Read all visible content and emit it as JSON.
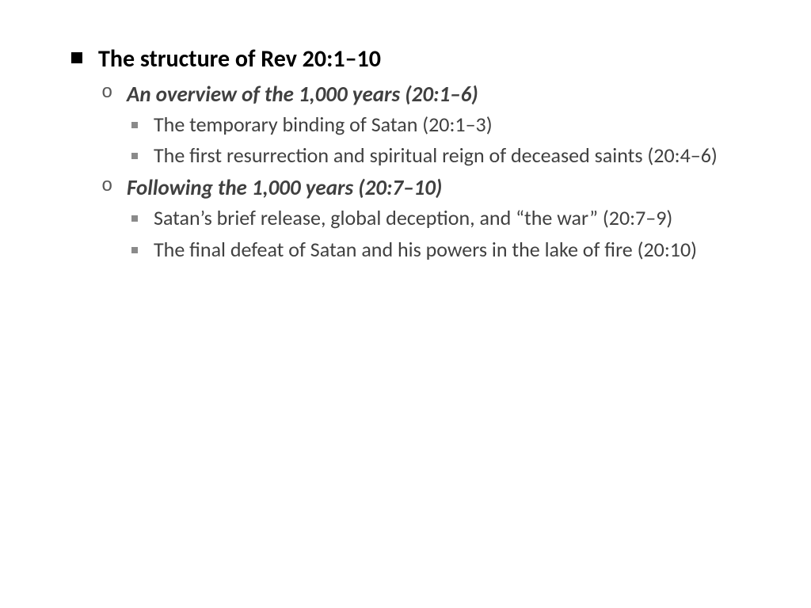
{
  "colors": {
    "background": "#ffffff",
    "heading": "#000000",
    "body": "#404040",
    "bullet_l1": "#000000",
    "bullet_l2": "#595959",
    "bullet_l3": "#8a8a8a"
  },
  "typography": {
    "family": "Calibri",
    "l1_size_pt": 30,
    "l2_size_pt": 27,
    "l3_size_pt": 26,
    "l1_weight": 700,
    "l2_weight": 700,
    "l2_style": "italic",
    "l3_weight": 400
  },
  "outline": {
    "title": "The structure of Rev 20:1–10",
    "sections": [
      {
        "heading": "An overview of the 1,000 years (20:1–6)",
        "points": [
          "The temporary binding of Satan (20:1–3)",
          "The first resurrection and spiritual reign of deceased saints (20:4–6)"
        ]
      },
      {
        "heading": "Following the 1,000 years (20:7–10)",
        "points": [
          "Satan’s brief release, global deception, and “the war” (20:7–9)",
          "The final defeat of Satan and his powers in the lake of fire (20:10)"
        ]
      }
    ]
  }
}
